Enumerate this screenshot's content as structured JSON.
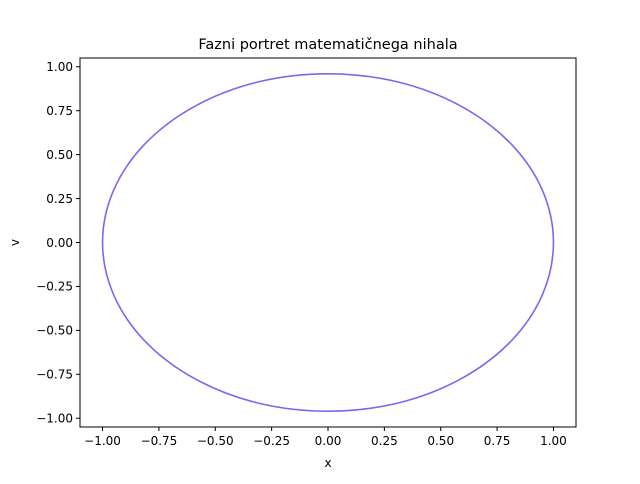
{
  "chart_data": {
    "type": "line",
    "title": "Fazni portret matematičnega nihala",
    "xlabel": "x",
    "ylabel": "v",
    "xlim": [
      -1.1,
      1.1
    ],
    "ylim": [
      -1.05,
      1.05
    ],
    "xticks": [
      -1.0,
      -0.75,
      -0.5,
      -0.25,
      0.0,
      0.25,
      0.5,
      0.75,
      1.0
    ],
    "xtick_labels": [
      "−1.00",
      "−0.75",
      "−0.50",
      "−0.25",
      "0.00",
      "0.25",
      "0.50",
      "0.75",
      "1.00"
    ],
    "yticks": [
      -1.0,
      -0.75,
      -0.5,
      -0.25,
      0.0,
      0.25,
      0.5,
      0.75,
      1.0
    ],
    "ytick_labels": [
      "−1.00",
      "−0.75",
      "−0.50",
      "−0.25",
      "0.00",
      "0.25",
      "0.50",
      "0.75",
      "1.00"
    ],
    "grid": false,
    "series": [
      {
        "color": "#7b68ee",
        "x": [
          1.0,
          0.951,
          0.809,
          0.588,
          0.309,
          0.0,
          -0.309,
          -0.588,
          -0.809,
          -0.951,
          -1.0,
          -0.951,
          -0.809,
          -0.588,
          -0.309,
          0.0,
          0.309,
          0.588,
          0.809,
          0.951,
          1.0
        ],
        "y": [
          0.0,
          0.297,
          0.565,
          0.777,
          0.914,
          0.96,
          0.914,
          0.777,
          0.565,
          0.297,
          0.0,
          -0.297,
          -0.565,
          -0.777,
          -0.914,
          -0.96,
          -0.914,
          -0.777,
          -0.565,
          -0.297,
          0.0
        ]
      }
    ]
  }
}
